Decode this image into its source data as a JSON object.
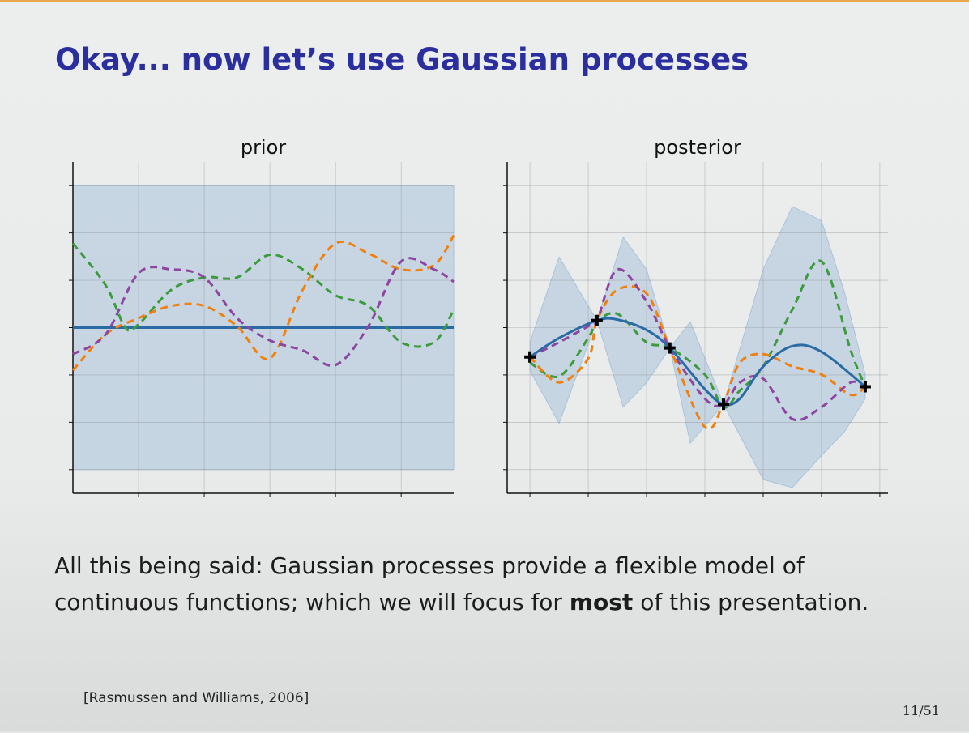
{
  "title": "Okay... now let’s use Gaussian processes",
  "body": {
    "line1": "All this being said: Gaussian processes provide a flexible model of",
    "line2": [
      "continuous functions; which we will focus for ",
      "most",
      " of this presentation."
    ]
  },
  "citation": "[Rasmussen and Williams, 2006]",
  "page": "11/51",
  "chart_data": [
    {
      "type": "line",
      "title": "prior",
      "grid": true,
      "xlim": [
        0,
        5.8
      ],
      "xticks": [
        1,
        2,
        3,
        4,
        5
      ],
      "ylim": [
        -3.5,
        3.5
      ],
      "yticks": [
        -3,
        -2,
        -1,
        0,
        1,
        2,
        3
      ],
      "band": {
        "color": "#a9c3da",
        "x": [
          0,
          5.8
        ],
        "lower": [
          -3,
          -3
        ],
        "upper": [
          3,
          3
        ]
      },
      "series": [
        {
          "color": "#2a6ba6",
          "style": "solid",
          "x": [
            0,
            5.8
          ],
          "values": [
            0,
            0
          ]
        },
        {
          "color": "#3c9b3c",
          "style": "dashed",
          "x": [
            0,
            0.5,
            0.8,
            1,
            1.5,
            2,
            2.5,
            3,
            3.5,
            4,
            4.5,
            5,
            5.5,
            5.8
          ],
          "values": [
            1.78,
            0.89,
            0,
            0.07,
            0.8,
            1.06,
            1.06,
            1.54,
            1.23,
            0.68,
            0.46,
            -0.31,
            -0.31,
            0.38
          ]
        },
        {
          "color": "#f0800f",
          "style": "dashed",
          "x": [
            0,
            0.5,
            1,
            1.5,
            2,
            2.5,
            3,
            3.5,
            4,
            4.5,
            5,
            5.5,
            5.8
          ],
          "values": [
            -0.9,
            -0.14,
            0.2,
            0.46,
            0.46,
            0.03,
            -0.65,
            0.8,
            1.78,
            1.57,
            1.23,
            1.32,
            1.95
          ]
        },
        {
          "color": "#8d45a0",
          "style": "dashed",
          "x": [
            0,
            0.5,
            1,
            1.5,
            2,
            2.5,
            3,
            3.5,
            4,
            4.5,
            5,
            5.5,
            5.8
          ],
          "values": [
            -0.56,
            -0.14,
            1.15,
            1.23,
            1.06,
            0.2,
            -0.27,
            -0.48,
            -0.79,
            0.03,
            1.4,
            1.23,
            0.97
          ]
        }
      ]
    },
    {
      "type": "line",
      "title": "posterior",
      "grid": true,
      "xlim": [
        -0.39,
        6.14
      ],
      "xticks": [
        0,
        1,
        2,
        3,
        4,
        5,
        6
      ],
      "ylim": [
        -3.5,
        3.5
      ],
      "yticks": [
        -3,
        -2,
        -1,
        0,
        1,
        2,
        3
      ],
      "band": {
        "color": "#a9c3da",
        "x": [
          0,
          0.5,
          1.15,
          1.6,
          2,
          2.4,
          2.75,
          3.32,
          4,
          4.5,
          5,
          5.4,
          5.75
        ],
        "lower": [
          -0.91,
          -2.02,
          0.15,
          -1.68,
          -1.16,
          -0.43,
          -2.44,
          -1.62,
          -3.21,
          -3.38,
          -2.7,
          -2.19,
          -1.5
        ],
        "upper": [
          -0.31,
          1.49,
          0.15,
          1.91,
          1.23,
          -0.43,
          0.12,
          -1.62,
          1.23,
          2.56,
          2.26,
          0.72,
          -0.99
        ]
      },
      "series": [
        {
          "color": "#3c9b3c",
          "style": "dashed",
          "x": [
            0,
            0.5,
            1,
            1.15,
            1.5,
            2,
            2.4,
            3,
            3.32,
            3.6,
            4,
            4.5,
            5,
            5.5,
            5.75
          ],
          "values": [
            -0.74,
            -1.03,
            -0.22,
            0.12,
            0.29,
            -0.31,
            -0.43,
            -0.99,
            -1.68,
            -1.33,
            -0.82,
            0.38,
            1.4,
            -0.48,
            -1.25
          ]
        },
        {
          "color": "#f0800f",
          "style": "dashed",
          "x": [
            0,
            0.5,
            1,
            1.15,
            1.5,
            2,
            2.4,
            3,
            3.32,
            3.6,
            4,
            4.5,
            5,
            5.5,
            5.75
          ],
          "values": [
            -0.62,
            -1.16,
            -0.65,
            0.15,
            0.8,
            0.72,
            -0.43,
            -2.1,
            -1.59,
            -0.74,
            -0.56,
            -0.82,
            -0.99,
            -1.42,
            -1.25
          ]
        },
        {
          "color": "#8d45a0",
          "style": "dashed",
          "x": [
            0,
            0.5,
            1,
            1.15,
            1.5,
            2,
            2.4,
            3,
            3.32,
            3.6,
            4,
            4.5,
            5,
            5.5,
            5.75
          ],
          "values": [
            -0.62,
            -0.31,
            0.03,
            0.15,
            1.23,
            0.55,
            -0.43,
            -1.5,
            -1.62,
            -1.16,
            -1.08,
            -1.93,
            -1.68,
            -1.16,
            -1.25
          ]
        },
        {
          "color": "#2a6ba6",
          "style": "solid",
          "x": [
            0,
            0.5,
            1.15,
            1.5,
            2,
            2.4,
            3,
            3.32,
            3.6,
            4,
            4.5,
            5,
            5.75
          ],
          "values": [
            -0.62,
            -0.22,
            0.15,
            0.17,
            -0.05,
            -0.43,
            -1.3,
            -1.62,
            -1.5,
            -0.82,
            -0.39,
            -0.51,
            -1.25
          ]
        }
      ],
      "points": {
        "color": "#000000",
        "x": [
          0,
          1.15,
          2.4,
          3.32,
          5.75
        ],
        "y": [
          -0.62,
          0.15,
          -0.43,
          -1.62,
          -1.25
        ]
      }
    }
  ]
}
